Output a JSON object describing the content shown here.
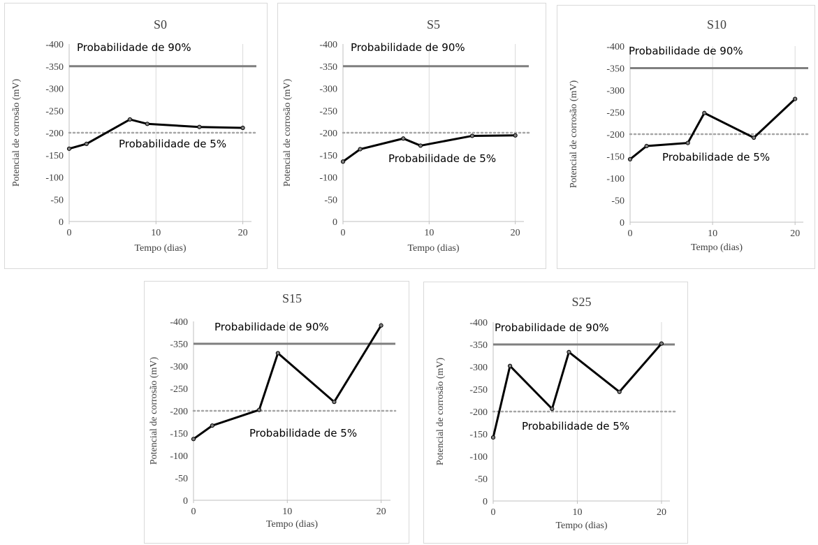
{
  "chart_data": [
    {
      "type": "line",
      "title": "S0",
      "xlabel": "Tempo (dias)",
      "ylabel": "Potencial de corrosão (mV)",
      "xlim": [
        0,
        21
      ],
      "ylim": [
        -400,
        0
      ],
      "xticks": [
        0,
        10,
        20
      ],
      "yticks": [
        -400,
        -350,
        -300,
        -250,
        -200,
        -150,
        -100,
        -50,
        0
      ],
      "grid": "vertical",
      "series": [
        {
          "x": [
            0,
            2,
            7,
            9,
            15,
            20
          ],
          "y": [
            -164,
            -175,
            -230,
            -220,
            -213,
            -211
          ]
        }
      ],
      "reference_lines": [
        {
          "label": "Probabilidade de 90%",
          "y": -350,
          "style": "solid",
          "color": "#7f7f7f"
        },
        {
          "label": "Probabilidade de 5%",
          "y": -200,
          "style": "dotted",
          "color": "#a6a6a6"
        }
      ]
    },
    {
      "type": "line",
      "title": "S5",
      "xlabel": "Tempo (dias)",
      "ylabel": "Potencial de corrosão (mV)",
      "xlim": [
        0,
        21
      ],
      "ylim": [
        -400,
        0
      ],
      "xticks": [
        0,
        10,
        20
      ],
      "yticks": [
        -400,
        -350,
        -300,
        -250,
        -200,
        -150,
        -100,
        -50,
        0
      ],
      "grid": "vertical",
      "series": [
        {
          "x": [
            0,
            2,
            7,
            9,
            15,
            20
          ],
          "y": [
            -135,
            -163,
            -187,
            -171,
            -193,
            -194
          ]
        }
      ],
      "reference_lines": [
        {
          "label": "Probabilidade de 90%",
          "y": -350,
          "style": "solid",
          "color": "#7f7f7f"
        },
        {
          "label": "Probabilidade de 5%",
          "y": -200,
          "style": "dotted",
          "color": "#a6a6a6"
        }
      ]
    },
    {
      "type": "line",
      "title": "S10",
      "xlabel": "Tempo (dias)",
      "ylabel": "Potencial de corrosão (mV)",
      "xlim": [
        0,
        21
      ],
      "ylim": [
        -400,
        0
      ],
      "xticks": [
        0,
        10,
        20
      ],
      "yticks": [
        -400,
        -350,
        -300,
        -250,
        -200,
        -150,
        -100,
        -50,
        0
      ],
      "grid": "vertical",
      "series": [
        {
          "x": [
            0,
            2,
            7,
            9,
            15,
            20
          ],
          "y": [
            -143,
            -173,
            -180,
            -248,
            -192,
            -280
          ]
        }
      ],
      "reference_lines": [
        {
          "label": "Probabilidade de 90%",
          "y": -350,
          "style": "solid",
          "color": "#7f7f7f"
        },
        {
          "label": "Probabilidade de 5%",
          "y": -200,
          "style": "dotted",
          "color": "#a6a6a6"
        }
      ]
    },
    {
      "type": "line",
      "title": "S15",
      "xlabel": "Tempo (dias)",
      "ylabel": "Potencial de corrosão (mV)",
      "xlim": [
        0,
        21
      ],
      "ylim": [
        -400,
        0
      ],
      "xticks": [
        0,
        10,
        20
      ],
      "yticks": [
        -400,
        -350,
        -300,
        -250,
        -200,
        -150,
        -100,
        -50,
        0
      ],
      "grid": "vertical",
      "series": [
        {
          "x": [
            0,
            2,
            7,
            9,
            15,
            20
          ],
          "y": [
            -137,
            -167,
            -202,
            -329,
            -220,
            -391
          ]
        }
      ],
      "reference_lines": [
        {
          "label": "Probabilidade de 90%",
          "y": -350,
          "style": "solid",
          "color": "#7f7f7f"
        },
        {
          "label": "Probabilidade de 5%",
          "y": -200,
          "style": "dotted",
          "color": "#a6a6a6"
        }
      ]
    },
    {
      "type": "line",
      "title": "S25",
      "xlabel": "Tempo (dias)",
      "ylabel": "Potencial de corrosão (mV)",
      "xlim": [
        0,
        21
      ],
      "ylim": [
        -400,
        0
      ],
      "xticks": [
        0,
        10,
        20
      ],
      "yticks": [
        -400,
        -350,
        -300,
        -250,
        -200,
        -150,
        -100,
        -50,
        0
      ],
      "grid": "vertical",
      "series": [
        {
          "x": [
            0,
            2,
            7,
            9,
            15,
            20
          ],
          "y": [
            -142,
            -302,
            -206,
            -333,
            -244,
            -352
          ]
        }
      ],
      "reference_lines": [
        {
          "label": "Probabilidade de 90%",
          "y": -350,
          "style": "solid",
          "color": "#7f7f7f"
        },
        {
          "label": "Probabilidade de 5%",
          "y": -200,
          "style": "dotted",
          "color": "#a6a6a6"
        }
      ]
    }
  ]
}
